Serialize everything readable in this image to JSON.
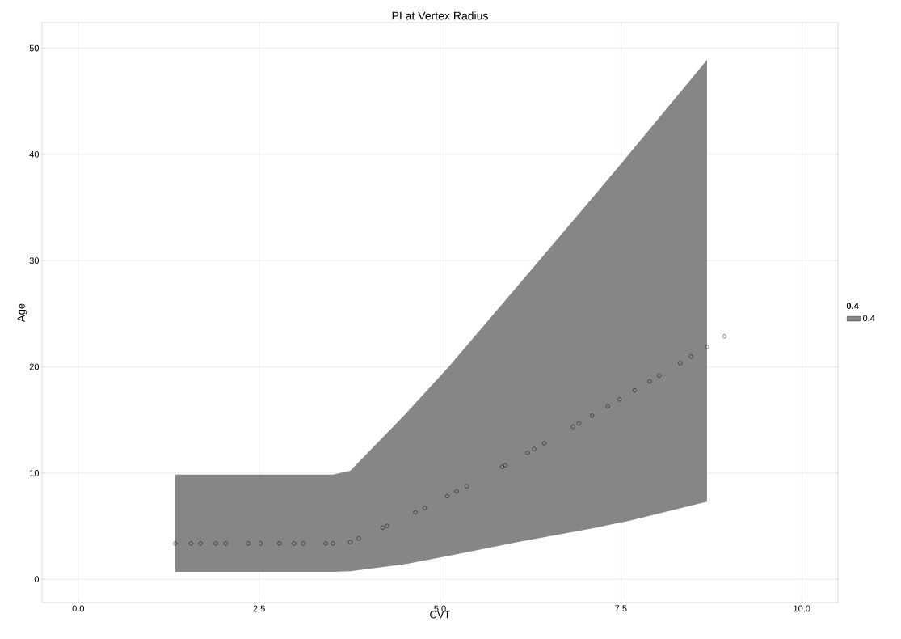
{
  "chart_data": {
    "type": "scatter",
    "title": "PI at Vertex Radius",
    "xlabel": "CVT",
    "ylabel": "Age",
    "legend_title": "0.4",
    "legend": "right",
    "grid": true,
    "marker": "circle",
    "xlim": [
      -0.5,
      10.5
    ],
    "ylim": [
      -2.2,
      52.4
    ],
    "xticks": [
      {
        "value": 0,
        "label": "0.0"
      },
      {
        "value": 2.5,
        "label": "2.5"
      },
      {
        "value": 5,
        "label": "5.0"
      },
      {
        "value": 7.5,
        "label": "7.5"
      },
      {
        "value": 10,
        "label": "10.0"
      }
    ],
    "yticks": [
      0,
      10,
      20,
      30,
      40,
      50
    ],
    "series": [
      {
        "type": "area",
        "name": "0.4",
        "color": "#868686",
        "x": [
          1.34,
          3.52,
          3.76,
          4.5,
          5.12,
          6.07,
          7.18,
          7.61,
          8.69
        ],
        "values": [
          null,
          null,
          null,
          null,
          null,
          null,
          null,
          null,
          null
        ],
        "lower": [
          0.7,
          0.7,
          0.75,
          1.39,
          2.2,
          3.5,
          4.89,
          5.5,
          7.3
        ],
        "upper": [
          9.85,
          9.85,
          10.22,
          15.4,
          20.0,
          27.6,
          36.5,
          40.0,
          48.9
        ]
      },
      {
        "type": "scatter",
        "color": "#000000",
        "x": [
          1.34,
          1.56,
          1.69,
          1.9,
          2.04,
          2.35,
          2.52,
          2.78,
          2.98,
          3.11,
          3.42,
          3.52,
          3.76,
          3.88,
          4.21,
          4.27,
          4.66,
          4.79,
          5.1,
          5.23,
          5.37,
          5.86,
          5.9,
          6.21,
          6.3,
          6.44,
          6.84,
          6.92,
          7.1,
          7.32,
          7.48,
          7.69,
          7.9,
          8.03,
          8.32,
          8.47,
          8.69,
          8.93
        ],
        "values": [
          3.37,
          3.37,
          3.37,
          3.37,
          3.37,
          3.37,
          3.37,
          3.37,
          3.37,
          3.37,
          3.37,
          3.37,
          3.5,
          3.83,
          4.85,
          5.02,
          6.29,
          6.72,
          7.82,
          8.27,
          8.75,
          10.58,
          10.73,
          11.9,
          12.25,
          12.81,
          14.36,
          14.67,
          15.4,
          16.29,
          16.93,
          17.78,
          18.63,
          19.17,
          20.35,
          20.97,
          21.87,
          22.87
        ]
      }
    ]
  }
}
